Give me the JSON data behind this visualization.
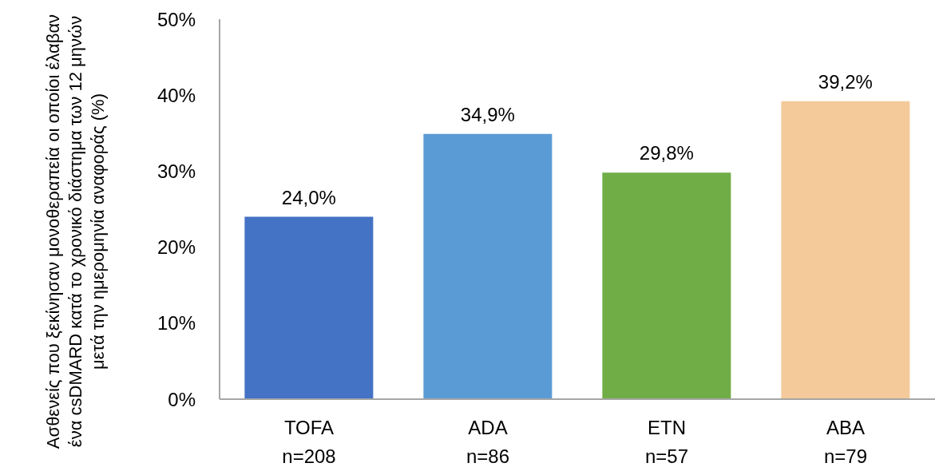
{
  "chart_data": {
    "type": "bar",
    "ylabel": "Ασθενείς που ξεκίνησαν μονοθεραπεία οι οποίοι έλαβαν ένα csDMARD κατά το χρονικό διάστημα των 12 μηνών μετά την ημερομηνία αναφοράς (%)",
    "categories": [
      "TOFA\nn=208",
      "ADA\nn=86",
      "ETN\nn=57",
      "ABA\nn=79"
    ],
    "values": [
      24.0,
      34.9,
      29.8,
      39.2
    ],
    "colors": [
      "#4472c4",
      "#5b9bd5",
      "#70ad47",
      "#f4ca9a"
    ],
    "value_labels": [
      "24,0%",
      "34,9%",
      "29,8%",
      "39,2%"
    ],
    "ylim": [
      0,
      50
    ],
    "yticks": [
      {
        "value": 0,
        "label": "0%"
      },
      {
        "value": 10,
        "label": "10%"
      },
      {
        "value": 20,
        "label": "20%"
      },
      {
        "value": 30,
        "label": "30%"
      },
      {
        "value": 40,
        "label": "40%"
      },
      {
        "value": 50,
        "label": "50%"
      }
    ]
  }
}
